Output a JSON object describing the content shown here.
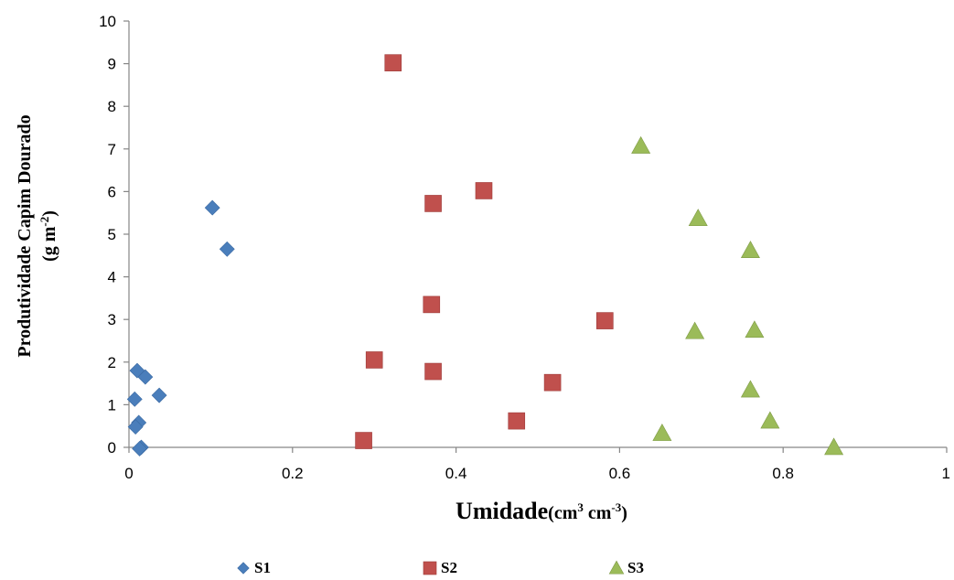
{
  "chart_data": {
    "type": "scatter",
    "title": "",
    "xlabel": {
      "main": "Umidade",
      "unit_prefix": "(cm",
      "unit_sup1": "3",
      "unit_mid": " cm",
      "unit_sup2": "-3",
      "unit_suffix": ")"
    },
    "ylabel": {
      "line1": "Produtividade Capim Dourado",
      "line2_prefix": "(g m",
      "line2_sup": "-2",
      "line2_suffix": ")"
    },
    "xlim": [
      0,
      1
    ],
    "ylim": [
      0,
      10
    ],
    "x_ticks": [
      0,
      0.2,
      0.4,
      0.6,
      0.8,
      1
    ],
    "x_tick_labels": [
      "0",
      "0.2",
      "0.4",
      "0.6",
      "0.8",
      "1"
    ],
    "y_ticks": [
      0,
      1,
      2,
      3,
      4,
      5,
      6,
      7,
      8,
      9,
      10
    ],
    "y_tick_labels": [
      "0",
      "1",
      "2",
      "3",
      "4",
      "5",
      "6",
      "7",
      "8",
      "9",
      "10"
    ],
    "grid": false,
    "legend_position": "bottom",
    "series": [
      {
        "name": "S1",
        "marker": "diamond",
        "color": "#4a7ebb",
        "points": [
          [
            0.01,
            1.8
          ],
          [
            0.02,
            1.65
          ],
          [
            0.037,
            1.22
          ],
          [
            0.007,
            1.13
          ],
          [
            0.012,
            0.58
          ],
          [
            0.008,
            0.48
          ],
          [
            0.015,
            0.0
          ],
          [
            0.013,
            -0.03
          ],
          [
            0.102,
            5.62
          ],
          [
            0.12,
            4.65
          ]
        ]
      },
      {
        "name": "S2",
        "marker": "square",
        "color": "#c0504d",
        "points": [
          [
            0.323,
            9.02
          ],
          [
            0.372,
            5.72
          ],
          [
            0.434,
            6.02
          ],
          [
            0.37,
            3.35
          ],
          [
            0.582,
            2.97
          ],
          [
            0.3,
            2.05
          ],
          [
            0.372,
            1.78
          ],
          [
            0.518,
            1.52
          ],
          [
            0.474,
            0.62
          ],
          [
            0.287,
            0.16
          ]
        ]
      },
      {
        "name": "S3",
        "marker": "triangle",
        "color": "#9bbb59",
        "points": [
          [
            0.626,
            7.07
          ],
          [
            0.696,
            5.37
          ],
          [
            0.76,
            4.62
          ],
          [
            0.692,
            2.72
          ],
          [
            0.765,
            2.75
          ],
          [
            0.76,
            1.35
          ],
          [
            0.784,
            0.62
          ],
          [
            0.652,
            0.33
          ],
          [
            0.862,
            0.0
          ]
        ]
      }
    ]
  }
}
